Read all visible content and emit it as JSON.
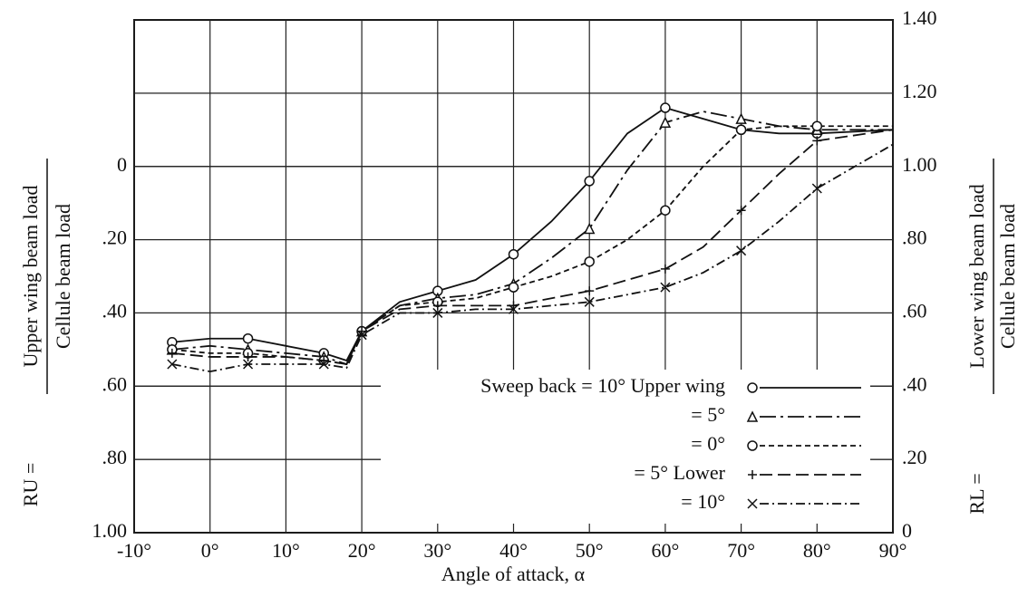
{
  "chart_data": {
    "type": "line",
    "x_label": "Angle of attack, α",
    "y_label": {
      "prefix": "RU =",
      "numerator": "Upper wing beam load",
      "denominator": "Cellule beam load"
    },
    "y2_label": {
      "prefix": "RL =",
      "numerator": "Lower wing beam load",
      "denominator": "Cellule beam load"
    },
    "x": [
      -5,
      0,
      5,
      10,
      15,
      18,
      20,
      25,
      30,
      35,
      40,
      45,
      50,
      55,
      60,
      65,
      70,
      75,
      80,
      90
    ],
    "xlim": [
      -10,
      90
    ],
    "xticks": [
      {
        "value": -10,
        "label": "-10°"
      },
      {
        "value": 0,
        "label": "0°"
      },
      {
        "value": 10,
        "label": "10°"
      },
      {
        "value": 20,
        "label": "20°"
      },
      {
        "value": 30,
        "label": "30°"
      },
      {
        "value": 40,
        "label": "40°"
      },
      {
        "value": 50,
        "label": "50°"
      },
      {
        "value": 60,
        "label": "60°"
      },
      {
        "value": 70,
        "label": "70°"
      },
      {
        "value": 80,
        "label": "80°"
      },
      {
        "value": 90,
        "label": "90°"
      }
    ],
    "ylim": [
      1.0,
      -0.4
    ],
    "yticks": [
      0,
      {
        "value": 0.2,
        "label": ".20"
      },
      {
        "value": 0.4,
        "label": ".40"
      },
      {
        "value": 0.6,
        "label": ".60"
      },
      {
        "value": 0.8,
        "label": ".80"
      },
      {
        "value": 1.0,
        "label": "1.00"
      }
    ],
    "y2lim": [
      0,
      1.4
    ],
    "y2ticks": [
      0,
      {
        "value": 0.2,
        "label": ".20"
      },
      {
        "value": 0.4,
        "label": ".40"
      },
      {
        "value": 0.6,
        "label": ".60"
      },
      {
        "value": 0.8,
        "label": ".80"
      },
      {
        "value": 1.0,
        "label": "1.00"
      },
      {
        "value": 1.2,
        "label": "1.20"
      },
      {
        "value": 1.4,
        "label": "1.40"
      }
    ],
    "grid": true,
    "legend": "lower right",
    "series": [
      {
        "name": "Sweep back = 10° Upper wing",
        "color": "#111111",
        "marker": "circle",
        "dash": "solid",
        "axis": "y2",
        "values": [
          0.52,
          0.53,
          0.53,
          0.51,
          0.49,
          0.47,
          0.55,
          0.63,
          0.66,
          0.69,
          0.76,
          0.85,
          0.96,
          1.09,
          1.16,
          1.13,
          1.1,
          1.09,
          1.09,
          1.1
        ]
      },
      {
        "name": "= 5°",
        "color": "#111111",
        "marker": "triangle",
        "dash": "long-dash-dot",
        "axis": "y2",
        "values": [
          0.5,
          0.51,
          0.5,
          0.49,
          0.48,
          0.46,
          0.55,
          0.62,
          0.64,
          0.65,
          0.68,
          0.75,
          0.83,
          0.99,
          1.12,
          1.15,
          1.13,
          1.11,
          1.1,
          1.1
        ]
      },
      {
        "name": "= 0°",
        "color": "#111111",
        "marker": "dotted-circle",
        "dash": "short-dash",
        "axis": "y2",
        "values": [
          0.5,
          0.49,
          0.49,
          0.48,
          0.47,
          0.46,
          0.55,
          0.62,
          0.63,
          0.64,
          0.67,
          0.7,
          0.74,
          0.8,
          0.88,
          1.0,
          1.1,
          1.11,
          1.11,
          1.11
        ]
      },
      {
        "name": "= 5° Lower",
        "color": "#111111",
        "marker": "plus",
        "dash": "long-dash",
        "axis": "y2",
        "values": [
          0.49,
          0.48,
          0.48,
          0.48,
          0.47,
          0.46,
          0.55,
          0.61,
          0.62,
          0.62,
          0.62,
          0.64,
          0.66,
          0.69,
          0.72,
          0.78,
          0.88,
          0.98,
          1.07,
          1.1
        ]
      },
      {
        "name": "= 10°",
        "color": "#111111",
        "marker": "x",
        "dash": "dash-dot",
        "axis": "y2",
        "values": [
          0.46,
          0.44,
          0.46,
          0.46,
          0.46,
          0.45,
          0.54,
          0.6,
          0.6,
          0.61,
          0.61,
          0.62,
          0.63,
          0.65,
          0.67,
          0.71,
          0.77,
          0.85,
          0.94,
          1.06
        ]
      }
    ]
  }
}
